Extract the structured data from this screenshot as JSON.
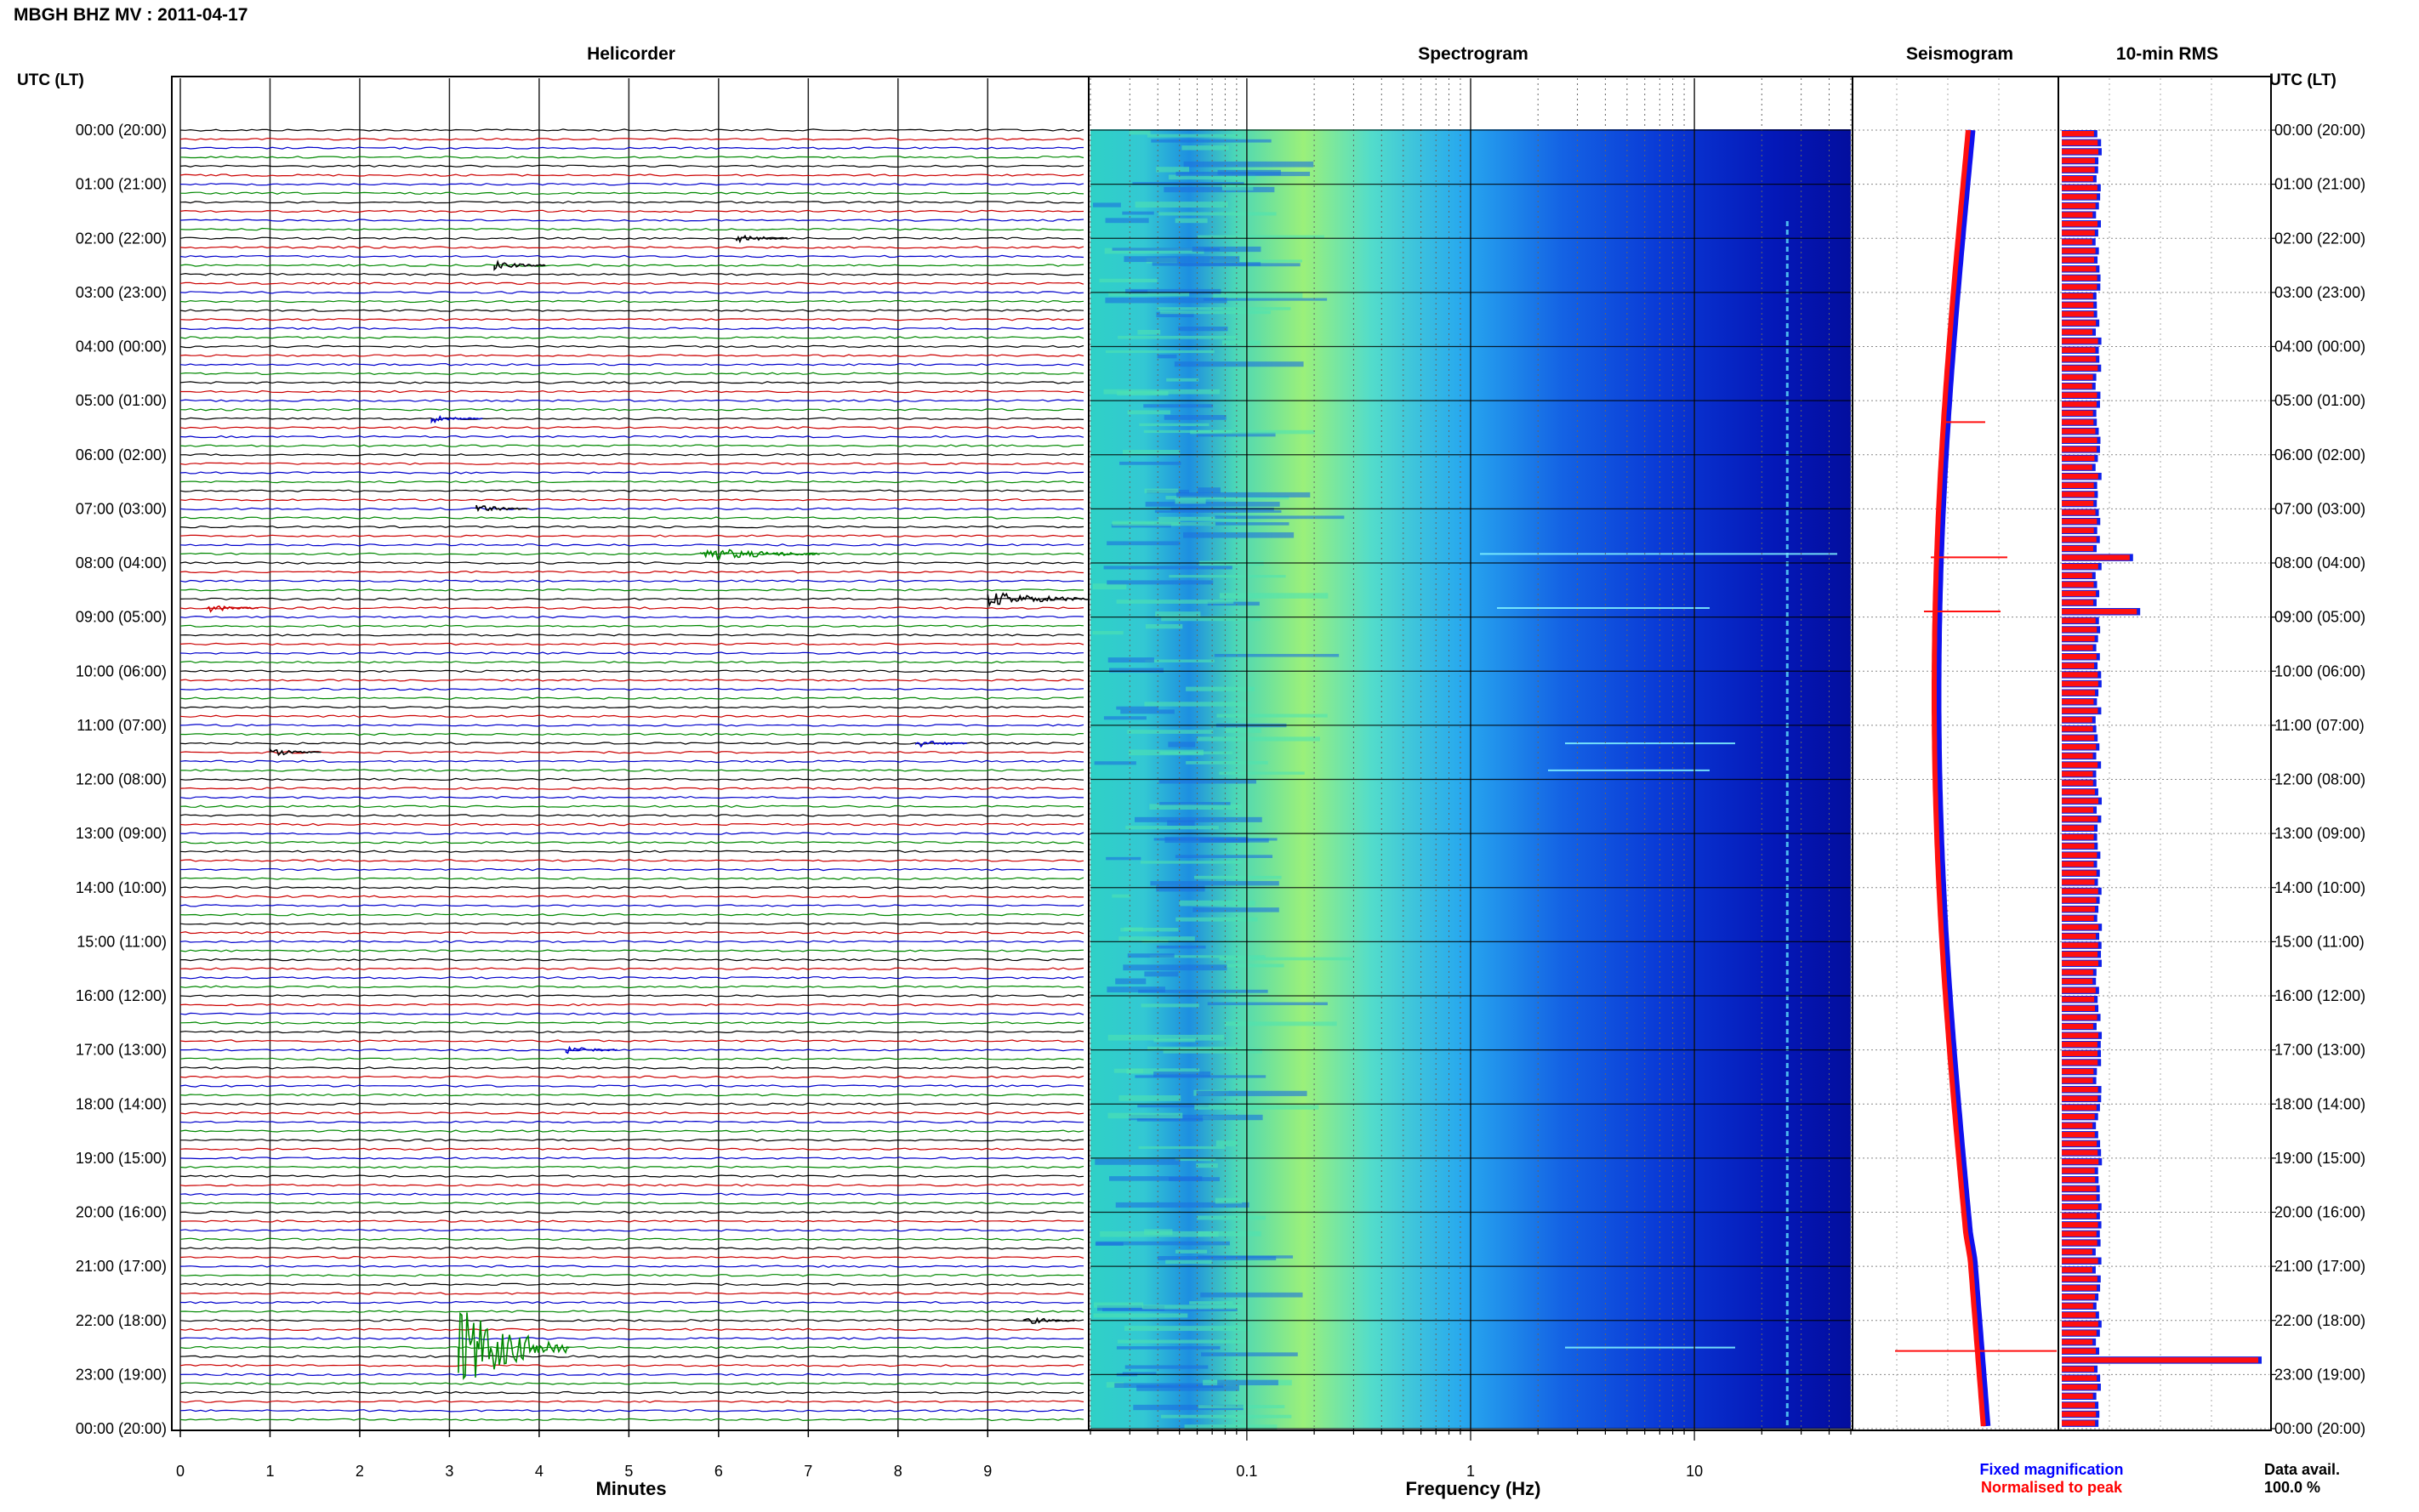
{
  "header": {
    "station_line": "MBGH BHZ MV : 2011-04-17",
    "utc_label_left": "UTC (LT)",
    "utc_label_right": "UTC (LT)"
  },
  "panels": {
    "helicorder": "Helicorder",
    "spectrogram": "Spectrogram",
    "seismogram": "Seismogram",
    "rms": "10-min RMS"
  },
  "axes": {
    "minutes_label": "Minutes",
    "frequency_label": "Frequency (Hz)",
    "minute_ticks": [
      "0",
      "1",
      "2",
      "3",
      "4",
      "5",
      "6",
      "7",
      "8",
      "9"
    ],
    "frequency_ticks": [
      "0.1",
      "1",
      "10"
    ]
  },
  "time_labels": [
    "00:00 (20:00)",
    "01:00 (21:00)",
    "02:00 (22:00)",
    "03:00 (23:00)",
    "04:00 (00:00)",
    "05:00 (01:00)",
    "06:00 (02:00)",
    "07:00 (03:00)",
    "08:00 (04:00)",
    "09:00 (05:00)",
    "10:00 (06:00)",
    "11:00 (07:00)",
    "12:00 (08:00)",
    "13:00 (09:00)",
    "14:00 (10:00)",
    "15:00 (11:00)",
    "16:00 (12:00)",
    "17:00 (13:00)",
    "18:00 (14:00)",
    "19:00 (15:00)",
    "20:00 (16:00)",
    "21:00 (17:00)",
    "22:00 (18:00)",
    "23:00 (19:00)",
    "00:00 (20:00)"
  ],
  "legend": {
    "fixed": "Fixed magnification",
    "fixed_color": "#0000ff",
    "normalised": "Normalised to peak",
    "normalised_color": "#ff0000"
  },
  "data_avail": {
    "label": "Data avail.",
    "value": "100.0 %"
  },
  "chart_data": {
    "type": "helicorder-spectrogram",
    "trace_colors": [
      "#000000",
      "#cc0000",
      "#0000cc",
      "#008800"
    ],
    "helicorder": {
      "x_range_minutes": [
        0,
        10
      ],
      "traces_per_hour": 6,
      "hours": 24,
      "events": [
        {
          "row": 12,
          "minute": 6.2,
          "color": "#000000"
        },
        {
          "row": 15,
          "minute": 3.5,
          "color": "#000000"
        },
        {
          "row": 32,
          "minute": 2.8,
          "color": "#0000cc"
        },
        {
          "row": 42,
          "minute": 3.3,
          "color": "#000000"
        },
        {
          "row": 47,
          "minute": 5.8,
          "color": "#008800"
        },
        {
          "row": 52,
          "minute": 9.0,
          "color": "#000000"
        },
        {
          "row": 53,
          "minute": 0.3,
          "color": "#cc0000"
        },
        {
          "row": 68,
          "minute": 8.2,
          "color": "#0000cc"
        },
        {
          "row": 69,
          "minute": 1.0,
          "color": "#000000"
        },
        {
          "row": 102,
          "minute": 4.3,
          "color": "#0000cc"
        },
        {
          "row": 132,
          "minute": 9.4,
          "color": "#000000"
        },
        {
          "row": 135,
          "minute": 3.1,
          "color": "#008800"
        }
      ]
    },
    "spectrogram": {
      "x_scale": "log",
      "x_range_hz": [
        0.02,
        50
      ],
      "line_frequency_hz": 26
    },
    "rms_10min": {
      "spikes": [
        {
          "row": 47,
          "value": 1.9
        },
        {
          "row": 53,
          "value": 2.1
        },
        {
          "row": 136,
          "value": 5.5
        }
      ]
    }
  }
}
